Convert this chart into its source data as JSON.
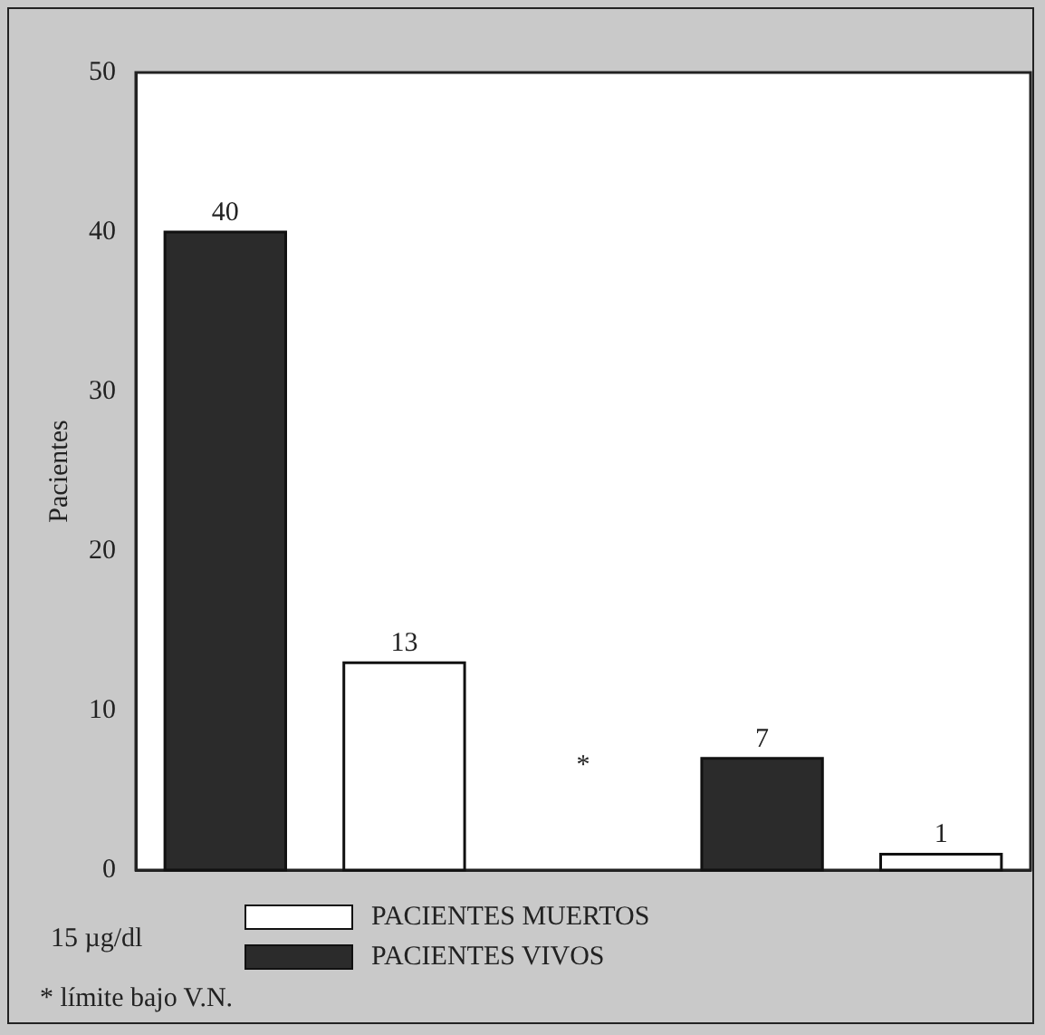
{
  "chart_data": {
    "type": "bar",
    "ylabel": "Pacientes",
    "categories": [
      null,
      null,
      null,
      null,
      null
    ],
    "series": [
      {
        "name": "PACIENTES MUERTOS",
        "color": "#ffffff",
        "values": [
          null,
          13,
          null,
          null,
          1
        ]
      },
      {
        "name": "PACIENTES VIVOS",
        "color": "#2b2b2b",
        "values": [
          40,
          null,
          null,
          7,
          null
        ]
      }
    ],
    "ylim": [
      0,
      50
    ],
    "yticks": [
      0,
      10,
      20,
      30,
      40,
      50
    ],
    "grid": false,
    "legend": "bottom",
    "tick_labels": "y",
    "data_labels": true,
    "annotations": [
      "*",
      "15 µg/dl",
      "* límite bajo V.N."
    ]
  }
}
